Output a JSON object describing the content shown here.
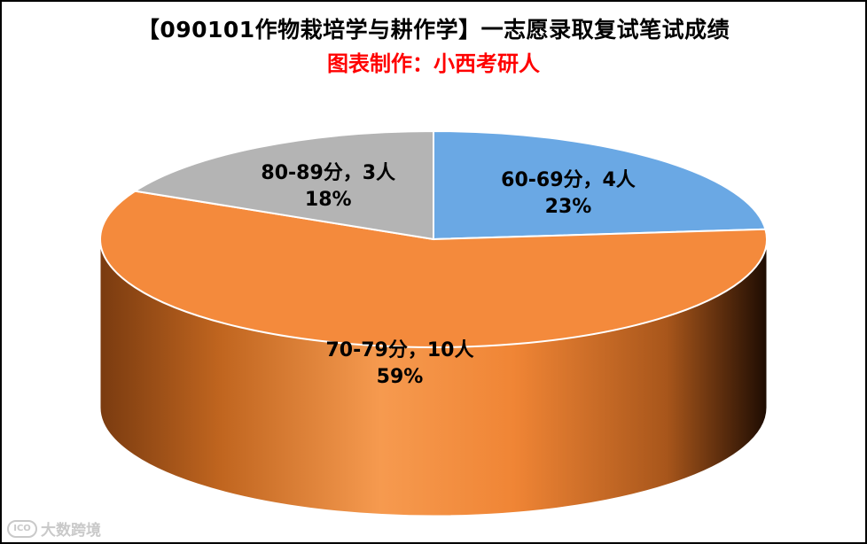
{
  "chart_data": {
    "type": "pie",
    "title": "【090101作物栽培学与耕作学】一志愿录取复试笔试成绩",
    "subtitle": "图表制作：小西考研人",
    "slices": [
      {
        "category": "60-69分",
        "count": 4,
        "count_text": "4人",
        "percent": 23,
        "percent_text": "23%",
        "color": "#6aa8e4"
      },
      {
        "category": "70-79分",
        "count": 10,
        "count_text": "10人",
        "percent": 59,
        "percent_text": "59%",
        "color": "#f48a3c"
      },
      {
        "category": "80-89分",
        "count": 3,
        "count_text": "3人",
        "percent": 18,
        "percent_text": "18%",
        "color": "#b4b4b4"
      }
    ]
  },
  "watermark": {
    "text": "大数跨境"
  }
}
